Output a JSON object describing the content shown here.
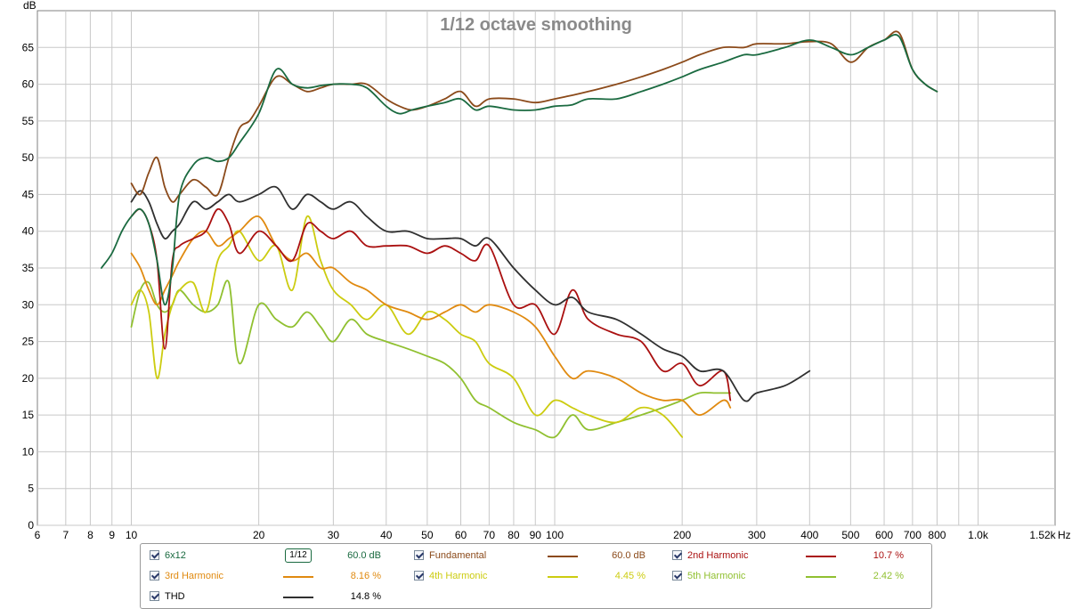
{
  "chart_data": {
    "type": "line",
    "title": "1/12 octave smoothing",
    "ylabel": "dB",
    "xunit": "Hz",
    "xscale": "log",
    "xlim": [
      6,
      1520
    ],
    "ylim": [
      0,
      70
    ],
    "yticks": [
      0,
      5,
      10,
      15,
      20,
      25,
      30,
      35,
      40,
      45,
      50,
      55,
      60,
      65
    ],
    "xticks": [
      {
        "value": 6,
        "label": "6"
      },
      {
        "value": 7,
        "label": "7"
      },
      {
        "value": 8,
        "label": "8"
      },
      {
        "value": 9,
        "label": "9"
      },
      {
        "value": 10,
        "label": "10"
      },
      {
        "value": 20,
        "label": "20"
      },
      {
        "value": 30,
        "label": "30"
      },
      {
        "value": 40,
        "label": "40"
      },
      {
        "value": 50,
        "label": "50"
      },
      {
        "value": 60,
        "label": "60"
      },
      {
        "value": 70,
        "label": "70"
      },
      {
        "value": 80,
        "label": "80"
      },
      {
        "value": 90,
        "label": "90"
      },
      {
        "value": 100,
        "label": "100"
      },
      {
        "value": 200,
        "label": "200"
      },
      {
        "value": 300,
        "label": "300"
      },
      {
        "value": 400,
        "label": "400"
      },
      {
        "value": 500,
        "label": "500"
      },
      {
        "value": 600,
        "label": "600"
      },
      {
        "value": 700,
        "label": "700"
      },
      {
        "value": 800,
        "label": "800"
      },
      {
        "value": 1000,
        "label": "1.0k"
      },
      {
        "value": 1520,
        "label": "1.52k"
      }
    ],
    "grid": true,
    "series": [
      {
        "name": "6x12",
        "color": "#1a6a40",
        "x": [
          8.5,
          9,
          9.5,
          10,
          10.5,
          11,
          11.5,
          12,
          12.5,
          13,
          14,
          15,
          16,
          17,
          18,
          20,
          22,
          24,
          26,
          28,
          30,
          33,
          36,
          40,
          43,
          46,
          50,
          55,
          60,
          65,
          70,
          80,
          90,
          100,
          110,
          120,
          140,
          160,
          180,
          200,
          220,
          250,
          280,
          300,
          350,
          400,
          450,
          500,
          550,
          600,
          650,
          700,
          750,
          800
        ],
        "y": [
          35,
          37,
          40,
          42,
          43,
          41,
          36,
          30,
          35,
          45,
          49,
          50,
          49.5,
          50,
          52,
          56,
          62,
          60,
          59.5,
          59.8,
          60,
          60,
          59.5,
          57,
          56,
          56.5,
          57,
          57.5,
          58,
          56.5,
          57,
          56.5,
          56.5,
          57,
          57.2,
          58,
          58,
          59,
          60,
          61,
          62,
          63,
          64,
          64,
          65,
          66,
          65,
          64,
          65,
          66,
          66.5,
          62,
          60,
          59
        ]
      },
      {
        "name": "Fundamental",
        "color": "#8b4a1a",
        "x": [
          10,
          10.5,
          11,
          11.5,
          12,
          12.5,
          13,
          14,
          15,
          16,
          17,
          18,
          19,
          20,
          22,
          24,
          26,
          28,
          30,
          33,
          36,
          40,
          43,
          46,
          50,
          55,
          60,
          65,
          70,
          80,
          90,
          100,
          110,
          120,
          140,
          160,
          180,
          200,
          220,
          250,
          280,
          300,
          350,
          400,
          450,
          500,
          550,
          600,
          650,
          700,
          750,
          800
        ],
        "y": [
          46.5,
          45,
          48,
          50,
          46,
          44,
          45,
          47,
          46,
          45,
          50,
          54,
          55,
          57,
          61,
          60,
          59,
          59.5,
          60,
          60,
          60,
          58,
          57,
          56.5,
          57,
          58,
          59,
          57,
          58,
          58,
          57.5,
          58,
          58.5,
          59,
          60,
          61,
          62,
          63,
          64,
          65,
          65,
          65.5,
          65.5,
          65.8,
          65.5,
          63,
          65,
          66,
          67,
          62,
          60,
          59
        ]
      },
      {
        "name": "2nd Harmonic",
        "color": "#aa1010",
        "x": [
          10,
          10.5,
          11,
          11.5,
          12,
          12.5,
          13,
          14,
          15,
          16,
          17,
          18,
          20,
          22,
          24,
          26,
          28,
          30,
          33,
          36,
          40,
          45,
          50,
          55,
          60,
          65,
          70,
          80,
          90,
          100,
          110,
          120,
          140,
          160,
          180,
          200,
          220,
          250,
          260
        ],
        "y": [
          42,
          43,
          41,
          36,
          24,
          36,
          38,
          39,
          40,
          43,
          41,
          37,
          40,
          38,
          36,
          41,
          40,
          39,
          40,
          38,
          38,
          38,
          37,
          38,
          37,
          36,
          38,
          30,
          30,
          26,
          32,
          28,
          26,
          25,
          21,
          22,
          19,
          21,
          17
        ]
      },
      {
        "name": "3rd Harmonic",
        "color": "#e08a10",
        "x": [
          10,
          10.5,
          11,
          11.5,
          12,
          12.5,
          13,
          14,
          15,
          16,
          17,
          18,
          20,
          22,
          24,
          26,
          28,
          30,
          33,
          36,
          40,
          45,
          50,
          55,
          60,
          65,
          70,
          80,
          90,
          100,
          110,
          120,
          140,
          160,
          180,
          200,
          220,
          250,
          260
        ],
        "y": [
          37,
          35,
          32,
          30,
          32,
          34,
          36,
          39,
          40,
          38,
          39,
          40,
          42,
          38,
          36,
          37,
          35,
          35,
          33,
          32,
          30,
          29,
          28,
          29,
          30,
          29,
          30,
          29,
          27,
          23,
          20,
          21,
          20,
          18,
          17,
          17,
          15,
          17,
          16
        ]
      },
      {
        "name": "4th Harmonic",
        "color": "#cccc10",
        "x": [
          10,
          10.5,
          11,
          11.5,
          12,
          12.5,
          13,
          14,
          15,
          16,
          17,
          18,
          20,
          22,
          24,
          26,
          28,
          30,
          33,
          36,
          40,
          45,
          50,
          55,
          60,
          65,
          70,
          80,
          90,
          100,
          110,
          120,
          140,
          160,
          180,
          200
        ],
        "y": [
          30,
          32,
          29,
          20,
          26,
          30,
          32,
          33,
          29,
          36,
          38,
          40,
          36,
          38,
          32,
          42,
          36,
          32,
          30,
          28,
          30,
          26,
          29,
          28,
          26,
          25,
          22,
          20,
          15,
          17,
          16,
          15,
          14,
          16,
          15,
          12
        ]
      },
      {
        "name": "5th Harmonic",
        "color": "#90c030",
        "x": [
          10,
          10.5,
          11,
          11.5,
          12,
          12.5,
          13,
          14,
          15,
          16,
          17,
          18,
          20,
          22,
          24,
          26,
          28,
          30,
          33,
          36,
          40,
          45,
          50,
          55,
          60,
          65,
          70,
          80,
          90,
          100,
          110,
          120,
          140,
          160,
          180,
          200,
          220,
          240,
          260
        ],
        "y": [
          27,
          32,
          33,
          30,
          29,
          30,
          32,
          30,
          29,
          30,
          33,
          22,
          30,
          28,
          27,
          29,
          27,
          25,
          28,
          26,
          25,
          24,
          23,
          22,
          20,
          17,
          16,
          14,
          13,
          12,
          15,
          13,
          14,
          15,
          16,
          17,
          18,
          18,
          18
        ]
      },
      {
        "name": "THD",
        "color": "#303030",
        "x": [
          10,
          10.5,
          11,
          11.5,
          12,
          12.5,
          13,
          14,
          15,
          16,
          17,
          18,
          20,
          22,
          24,
          26,
          28,
          30,
          33,
          36,
          40,
          45,
          50,
          55,
          60,
          65,
          70,
          80,
          90,
          100,
          110,
          120,
          140,
          160,
          180,
          200,
          220,
          250,
          280,
          300,
          350,
          400
        ],
        "y": [
          44,
          45.5,
          44,
          41,
          39,
          40,
          41,
          44,
          43,
          44,
          45,
          44,
          45,
          46,
          43,
          45,
          44,
          43,
          44,
          42,
          40,
          40,
          39,
          39,
          39,
          38,
          39,
          35,
          32,
          30,
          31,
          29,
          28,
          26,
          24,
          23,
          21,
          21,
          17,
          18,
          19,
          21
        ]
      }
    ]
  },
  "legend": {
    "items": [
      {
        "name": "6x12",
        "color": "#1a6a40",
        "value": "60.0 dB",
        "smoothing": "1/12"
      },
      {
        "name": "Fundamental",
        "color": "#8b4a1a",
        "value": "60.0 dB"
      },
      {
        "name": "2nd Harmonic",
        "color": "#aa1010",
        "value": "10.7 %"
      },
      {
        "name": "3rd Harmonic",
        "color": "#e08a10",
        "value": "8.16 %"
      },
      {
        "name": "4th Harmonic",
        "color": "#cccc10",
        "value": "4.45 %"
      },
      {
        "name": "5th Harmonic",
        "color": "#90c030",
        "value": "2.42 %"
      },
      {
        "name": "THD",
        "color": "#303030",
        "value": "14.8 %"
      }
    ]
  }
}
